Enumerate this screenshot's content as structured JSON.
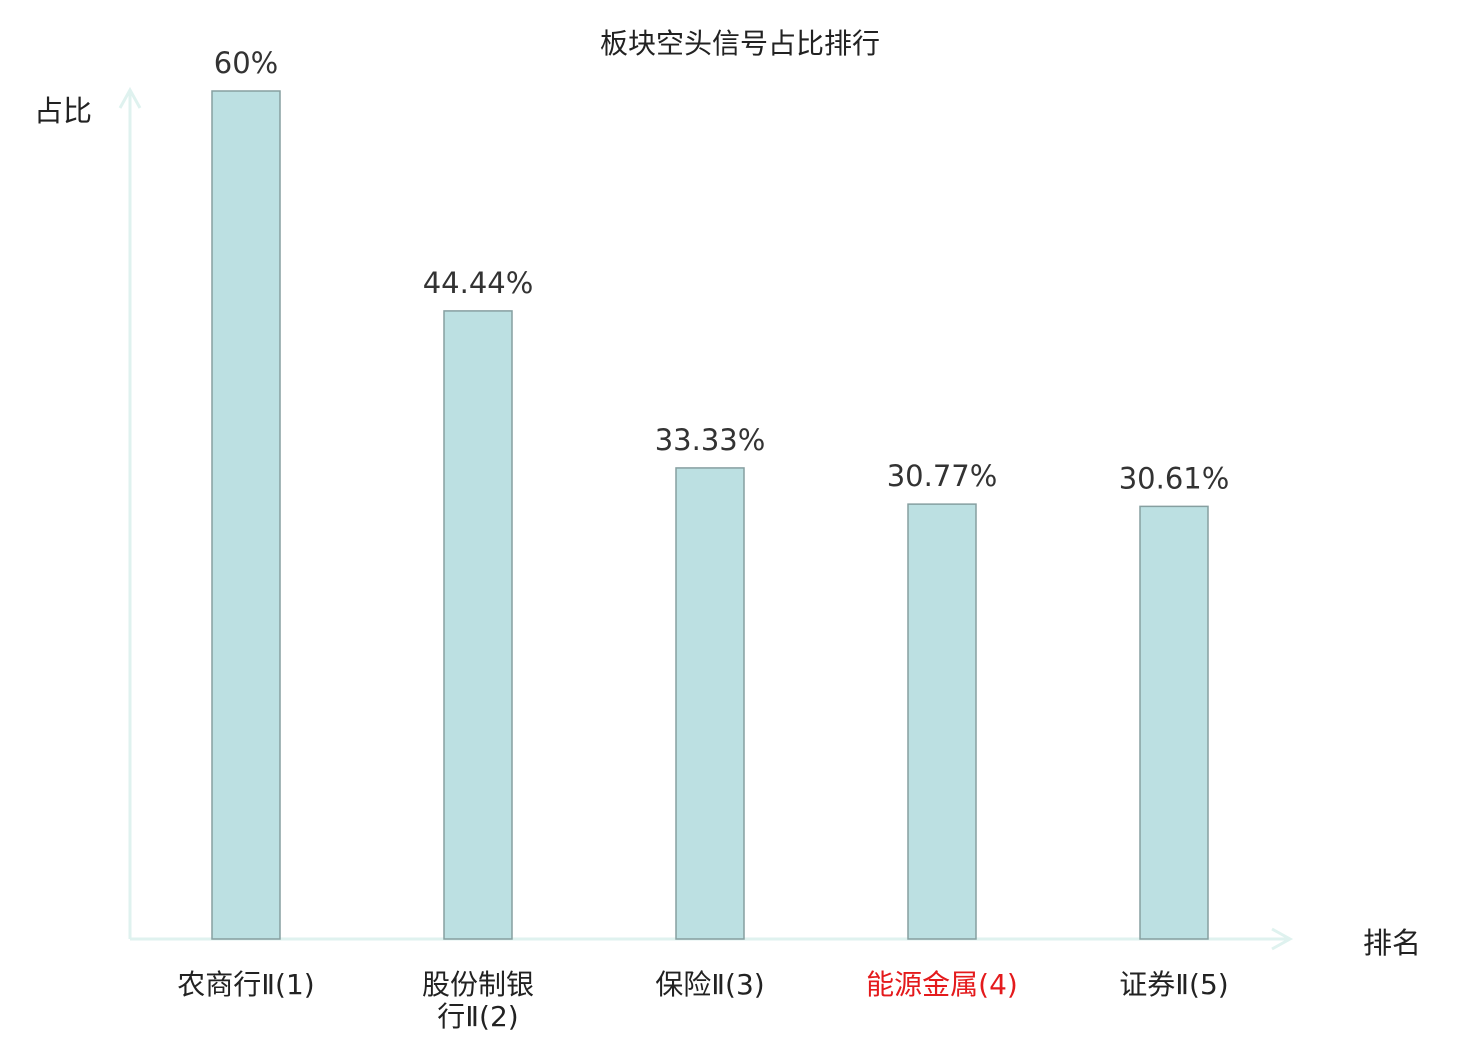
{
  "chart_data": {
    "type": "bar",
    "title": "板块空头信号占比排行",
    "ylabel": "占比",
    "xlabel": "排名",
    "categories": [
      "农商行Ⅱ(1)",
      "股份制银行Ⅱ(2)",
      "保险Ⅱ(3)",
      "能源金属(4)",
      "证券Ⅱ(5)"
    ],
    "category_lines": [
      [
        "农商行Ⅱ(1)"
      ],
      [
        "股份制银",
        "行Ⅱ(2)"
      ],
      [
        "保险Ⅱ(3)"
      ],
      [
        "能源金属(4)"
      ],
      [
        "证券Ⅱ(5)"
      ]
    ],
    "highlighted_category": "能源金属(4)",
    "values": [
      60,
      44.44,
      33.33,
      30.77,
      30.61
    ],
    "data_labels": [
      "60%",
      "44.44%",
      "33.33%",
      "30.77%",
      "30.61%"
    ],
    "unit": "%",
    "ylim": [
      0,
      60
    ],
    "grid": false,
    "legend": "none",
    "colors": {
      "bar_fill": "#bce0e2",
      "bar_stroke": "#869fa0",
      "axis": "#dff2ef",
      "label": "#222222",
      "data_label": "#333333",
      "highlight": "#e41a1c"
    }
  }
}
